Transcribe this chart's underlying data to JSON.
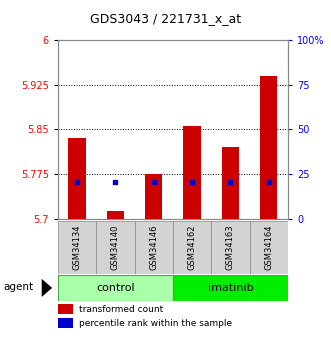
{
  "title": "GDS3043 / 221731_x_at",
  "samples": [
    "GSM34134",
    "GSM34140",
    "GSM34146",
    "GSM34162",
    "GSM34163",
    "GSM34164"
  ],
  "red_values": [
    5.835,
    5.713,
    5.775,
    5.856,
    5.82,
    5.94
  ],
  "blue_values": [
    5.762,
    5.762,
    5.762,
    5.762,
    5.762,
    5.762
  ],
  "groups": [
    {
      "label": "control",
      "start": 0,
      "end": 2,
      "color": "#AAFFAA"
    },
    {
      "label": "imatinib",
      "start": 3,
      "end": 5,
      "color": "#00EE00"
    }
  ],
  "ymin": 5.7,
  "ymax": 6.0,
  "yticks": [
    5.7,
    5.775,
    5.85,
    5.925,
    6.0
  ],
  "ytick_labels": [
    "5.7",
    "5.775",
    "5.85",
    "5.925",
    "6"
  ],
  "right_yticks_pct": [
    0,
    25,
    50,
    75,
    100
  ],
  "right_ytick_labels": [
    "0",
    "25",
    "50",
    "75",
    "100%"
  ],
  "bar_width": 0.45,
  "red_color": "#CC0000",
  "blue_color": "#0000CC",
  "tick_fontsize": 7,
  "title_fontsize": 9,
  "sample_fontsize": 6,
  "group_fontsize": 8,
  "legend_fontsize": 6.5
}
